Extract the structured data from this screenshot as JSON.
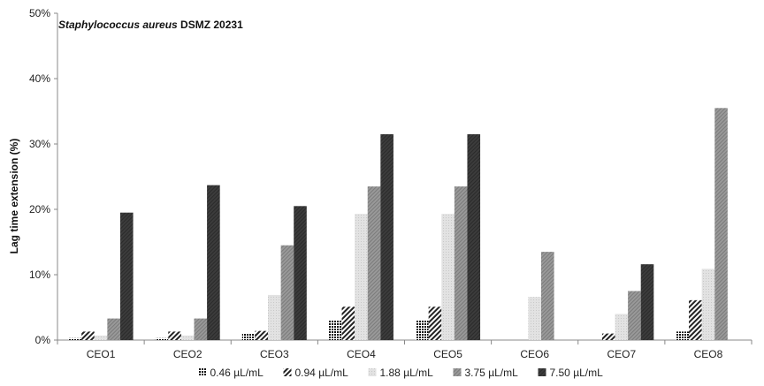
{
  "chart_data": {
    "type": "bar",
    "title_italic": "Staphylococcus aureus",
    "title_rest": " DSMZ 20231",
    "ylabel": "Lag time extension (%)",
    "xlabel": "",
    "ylim": [
      0,
      50
    ],
    "yticks": [
      "0%",
      "10%",
      "20%",
      "30%",
      "40%",
      "50%"
    ],
    "grid": false,
    "legend_position": "bottom",
    "categories": [
      "CEO1",
      "CEO2",
      "CEO3",
      "CEO4",
      "CEO5",
      "CEO6",
      "CEO7",
      "CEO8"
    ],
    "series": [
      {
        "name": "0.46 µL/mL",
        "values": [
          0.3,
          0.3,
          1.0,
          3.1,
          3.1,
          0,
          0,
          1.3
        ],
        "color": "#222222"
      },
      {
        "name": "0.94 µL/mL",
        "values": [
          1.3,
          1.3,
          1.4,
          5.1,
          5.1,
          0,
          1.0,
          6.1
        ],
        "color": "#333333"
      },
      {
        "name": "1.88 µL/mL",
        "values": [
          0.7,
          0.7,
          6.9,
          19.3,
          19.3,
          6.6,
          4.0,
          10.9
        ],
        "color": "#d9d9d9"
      },
      {
        "name": "3.75 µL/mL",
        "values": [
          3.3,
          3.3,
          14.5,
          23.5,
          23.5,
          13.5,
          7.5,
          35.5
        ],
        "color": "#8c8c8c"
      },
      {
        "name": "7.50 µL/mL",
        "values": [
          19.5,
          23.7,
          20.5,
          31.5,
          31.5,
          0,
          11.6,
          0
        ],
        "color": "#3a3a3a"
      }
    ]
  }
}
